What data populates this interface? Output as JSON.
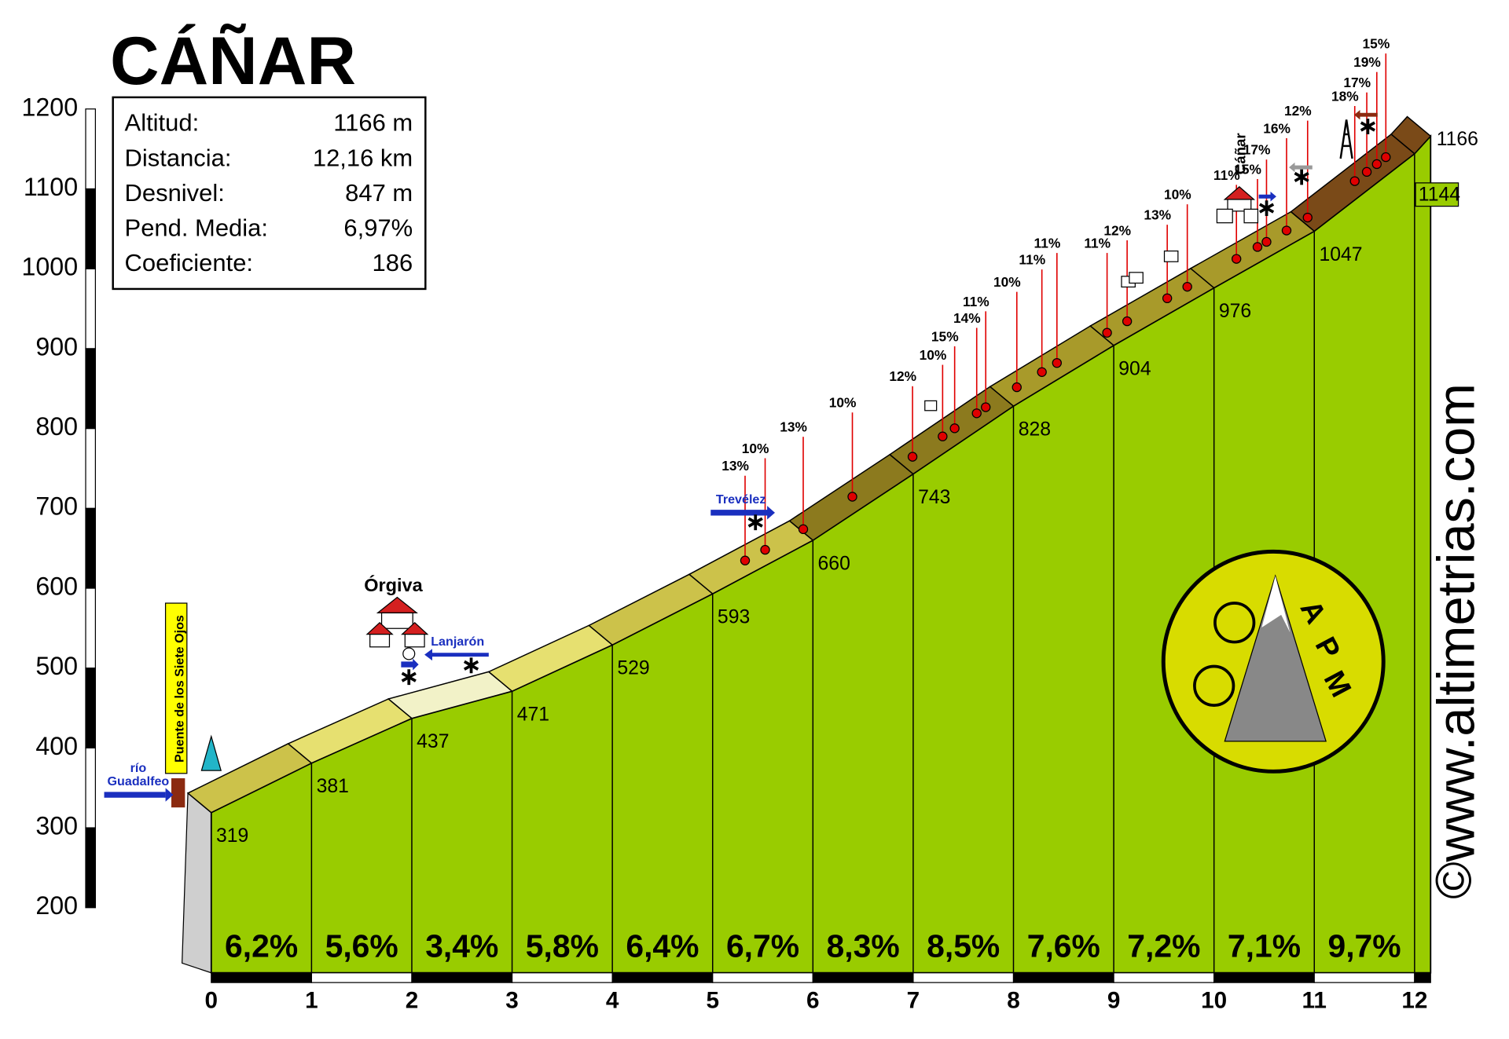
{
  "title": "CÁÑAR",
  "info_box": {
    "rows": [
      [
        "Altitud:",
        "1166 m"
      ],
      [
        "Distancia:",
        "12,16 km"
      ],
      [
        "Desnivel:",
        "847 m"
      ],
      [
        "Pend. Media:",
        "6,97%"
      ],
      [
        "Coeficiente:",
        "186"
      ]
    ]
  },
  "labels": {
    "orgiva": "Órgiva",
    "lanjaron": "Lanjarón",
    "trevelez": "Trevélez",
    "rio": "río",
    "guadalfeo": "Guadalfeo",
    "puente": "Puente de los Siete Ojos",
    "canar": "Cáñar",
    "site": "www.altimetrias.com",
    "copyright": "©",
    "logo": [
      "A",
      "P",
      "M"
    ]
  },
  "chart_data": {
    "type": "area",
    "x": [
      0,
      1,
      2,
      3,
      4,
      5,
      6,
      7,
      8,
      9,
      10,
      11,
      12,
      12.16
    ],
    "values": [
      319,
      381,
      437,
      471,
      529,
      593,
      660,
      743,
      828,
      904,
      976,
      1047,
      1144,
      1166
    ],
    "xlim": [
      0,
      12.16
    ],
    "xticks": [
      0,
      1,
      2,
      3,
      4,
      5,
      6,
      7,
      8,
      9,
      10,
      11,
      12
    ],
    "ylim": [
      200,
      1200
    ],
    "yticks": [
      200,
      300,
      400,
      500,
      600,
      700,
      800,
      900,
      1000,
      1100,
      1200
    ],
    "color": "#99cc00",
    "segment_grades": {
      "values": [
        6.2,
        5.6,
        3.4,
        5.8,
        6.4,
        6.7,
        8.3,
        8.5,
        7.6,
        7.2,
        7.1,
        9.7
      ],
      "value_labels": [
        "6,2%",
        "5,6%",
        "3,4%",
        "5,8%",
        "6,4%",
        "6,7%",
        "8,3%",
        "8,5%",
        "7,6%",
        "7,2%",
        "7,1%",
        "9,7%"
      ]
    },
    "grade_markers": {
      "x": [
        5.44,
        5.64,
        6.02,
        6.51,
        7.11,
        7.41,
        7.53,
        7.75,
        7.84,
        8.15,
        8.4,
        8.55,
        9.05,
        9.25,
        9.65,
        9.85,
        10.34,
        10.55,
        10.64,
        10.84,
        11.05,
        11.52,
        11.64,
        11.74,
        11.83
      ],
      "values": [
        13,
        10,
        13,
        10,
        12,
        10,
        15,
        14,
        11,
        10,
        11,
        11,
        11,
        12,
        13,
        10,
        11,
        15,
        17,
        16,
        12,
        18,
        17,
        19,
        15
      ],
      "value_labels": [
        "13%",
        "10%",
        "13%",
        "10%",
        "12%",
        "10%",
        "15%",
        "14%",
        "11%",
        "10%",
        "11%",
        "11%",
        "11%",
        "12%",
        "13%",
        "10%",
        "11%",
        "15%",
        "17%",
        "16%",
        "12%",
        "18%",
        "17%",
        "19%",
        "15%"
      ],
      "color": "#e00000"
    }
  }
}
